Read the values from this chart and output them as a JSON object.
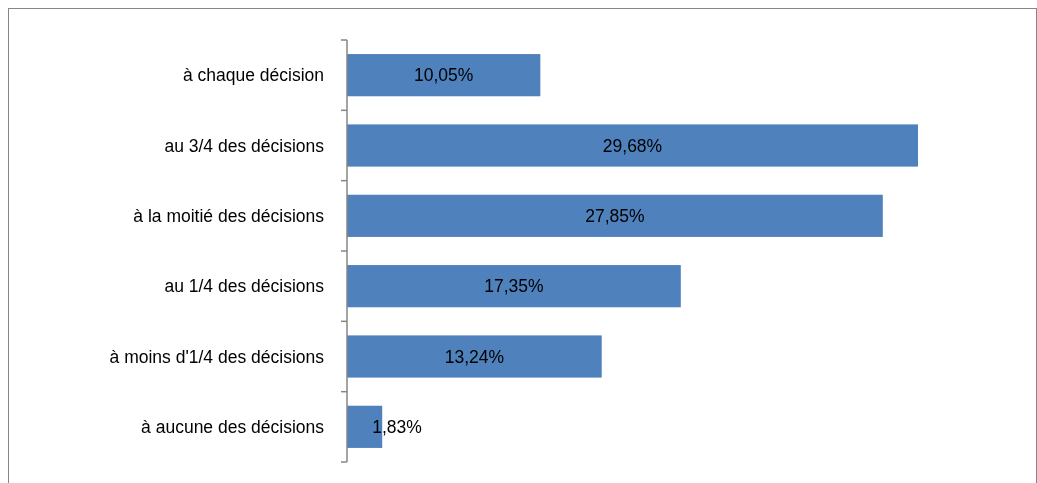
{
  "chart_data": {
    "type": "bar",
    "orientation": "horizontal",
    "categories": [
      "à chaque décision",
      "au 3/4 des décisions",
      "à la moitié des décisions",
      "au 1/4 des décisions",
      "à moins d'1/4 des décisions",
      "à aucune des décisions"
    ],
    "values": [
      10.05,
      29.68,
      27.85,
      17.35,
      13.24,
      1.83
    ],
    "value_labels": [
      "10,05%",
      "29,68%",
      "27,85%",
      "17,35%",
      "13,24%",
      "1,83%"
    ],
    "color": "#4f81bd",
    "tick_labels": "y"
  }
}
